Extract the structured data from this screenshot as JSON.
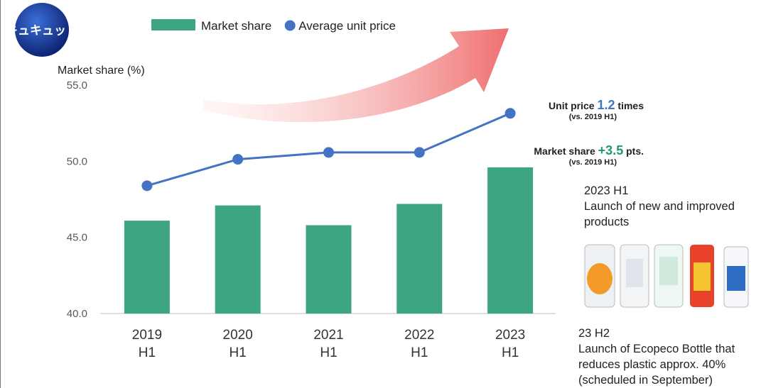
{
  "brand": "キュキュット",
  "chart_data": {
    "type": "combo",
    "y_label": "Market share (%)",
    "categories": [
      "2019 H1",
      "2020 H1",
      "2021 H1",
      "2022 H1",
      "2023 H1"
    ],
    "series": [
      {
        "name": "Market share",
        "type": "bar",
        "color": "#3ea584",
        "values": [
          46.1,
          47.1,
          45.8,
          47.2,
          49.6
        ]
      },
      {
        "name": "Average unit price",
        "type": "line",
        "axis": "y2",
        "color": "#4472c4",
        "values": [
          1.0,
          1.073,
          1.092,
          1.092,
          1.2
        ]
      }
    ],
    "ylim": [
      40,
      55
    ],
    "yticks": [
      {
        "value": 40,
        "label": "40.0"
      },
      {
        "value": 45,
        "label": "45.0"
      },
      {
        "value": 50,
        "label": "50.0"
      },
      {
        "value": 55,
        "label": "55.0"
      }
    ],
    "y2lim": [
      0.647,
      1.278
    ],
    "annotations": {
      "unit_price": {
        "prefix": "Unit price",
        "value": "1.2",
        "suffix": "times",
        "note": "(vs. 2019 H1)"
      },
      "market_share": {
        "prefix": "Market share",
        "value": "+3.5",
        "suffix": "pts.",
        "note": "(vs. 2019 H1)"
      }
    }
  },
  "notes": [
    {
      "title": "2023 H1",
      "text": "Launch of new and improved products"
    },
    {
      "title": "23 H2",
      "text": "Launch of Ecopeco Bottle that reduces plastic approx. 40% (scheduled in September)"
    }
  ]
}
